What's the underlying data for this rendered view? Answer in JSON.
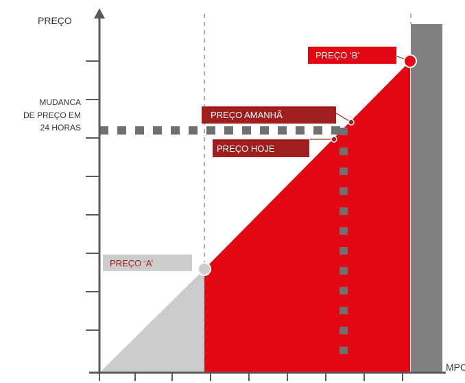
{
  "axes": {
    "y_label": "PREÇO",
    "x_label": "MPO"
  },
  "annotations": {
    "price_change": [
      "MUDANCA",
      "DE PREÇO   EM",
      "24 HORAS"
    ],
    "price_a": "PREÇO ‘A’",
    "price_b": "PREÇO ‘B’",
    "price_tomorrow": "PREÇO AMANHÃ",
    "price_today": "PREÇO  HOJE"
  },
  "colors": {
    "red": "#e30613",
    "dark_red": "#a01e1e",
    "gray": "#808080",
    "light_gray": "#cccccc",
    "axis": "#595959",
    "guide": "#7f7f7f",
    "text": "#333333"
  },
  "icons": {
    "y_axis_arrow": "arrow-up-icon"
  }
}
